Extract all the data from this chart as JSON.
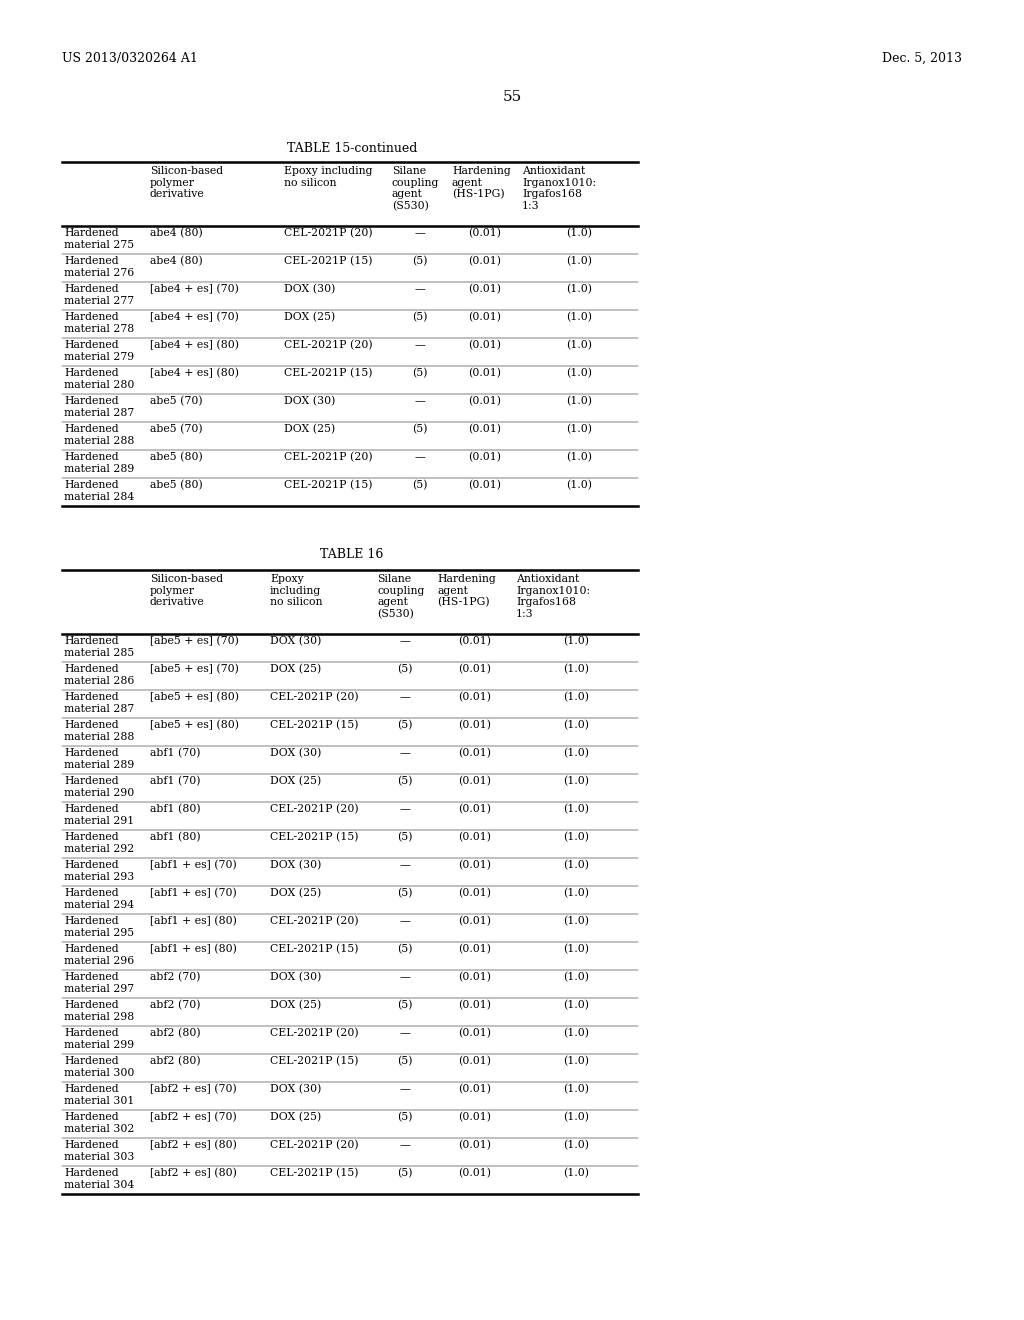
{
  "page_header_left": "US 2013/0320264 A1",
  "page_header_right": "Dec. 5, 2013",
  "page_number": "55",
  "table15_title": "TABLE 15-continued",
  "table15_headers": [
    "",
    "Silicon-based\npolymer\nderivative",
    "Epoxy including\nno silicon",
    "Silane\ncoupling\nagent\n(S530)",
    "Hardening\nagent\n(HS-1PG)",
    "Antioxidant\nIrganox1010:\nIrgafos168\n1:3"
  ],
  "table15_rows": [
    [
      "Hardened\nmaterial 275",
      "abe4 (80)",
      "CEL-2021P (20)",
      "—",
      "(0.01)",
      "(1.0)"
    ],
    [
      "Hardened\nmaterial 276",
      "abe4 (80)",
      "CEL-2021P (15)",
      "(5)",
      "(0.01)",
      "(1.0)"
    ],
    [
      "Hardened\nmaterial 277",
      "[abe4 + es] (70)",
      "DOX (30)",
      "—",
      "(0.01)",
      "(1.0)"
    ],
    [
      "Hardened\nmaterial 278",
      "[abe4 + es] (70)",
      "DOX (25)",
      "(5)",
      "(0.01)",
      "(1.0)"
    ],
    [
      "Hardened\nmaterial 279",
      "[abe4 + es] (80)",
      "CEL-2021P (20)",
      "—",
      "(0.01)",
      "(1.0)"
    ],
    [
      "Hardened\nmaterial 280",
      "[abe4 + es] (80)",
      "CEL-2021P (15)",
      "(5)",
      "(0.01)",
      "(1.0)"
    ],
    [
      "Hardened\nmaterial 287",
      "abe5 (70)",
      "DOX (30)",
      "—",
      "(0.01)",
      "(1.0)"
    ],
    [
      "Hardened\nmaterial 288",
      "abe5 (70)",
      "DOX (25)",
      "(5)",
      "(0.01)",
      "(1.0)"
    ],
    [
      "Hardened\nmaterial 289",
      "abe5 (80)",
      "CEL-2021P (20)",
      "—",
      "(0.01)",
      "(1.0)"
    ],
    [
      "Hardened\nmaterial 284",
      "abe5 (80)",
      "CEL-2021P (15)",
      "(5)",
      "(0.01)",
      "(1.0)"
    ]
  ],
  "table16_title": "TABLE 16",
  "table16_headers": [
    "",
    "Silicon-based\npolymer\nderivative",
    "Epoxy\nincluding\nno silicon",
    "Silane\ncoupling\nagent\n(S530)",
    "Hardening\nagent\n(HS-1PG)",
    "Antioxidant\nIrganox1010:\nIrgafos168\n1:3"
  ],
  "table16_rows": [
    [
      "Hardened\nmaterial 285",
      "[abe5 + es] (70)",
      "DOX (30)",
      "—",
      "(0.01)",
      "(1.0)"
    ],
    [
      "Hardened\nmaterial 286",
      "[abe5 + es] (70)",
      "DOX (25)",
      "(5)",
      "(0.01)",
      "(1.0)"
    ],
    [
      "Hardened\nmaterial 287",
      "[abe5 + es] (80)",
      "CEL-2021P (20)",
      "—",
      "(0.01)",
      "(1.0)"
    ],
    [
      "Hardened\nmaterial 288",
      "[abe5 + es] (80)",
      "CEL-2021P (15)",
      "(5)",
      "(0.01)",
      "(1.0)"
    ],
    [
      "Hardened\nmaterial 289",
      "abf1 (70)",
      "DOX (30)",
      "—",
      "(0.01)",
      "(1.0)"
    ],
    [
      "Hardened\nmaterial 290",
      "abf1 (70)",
      "DOX (25)",
      "(5)",
      "(0.01)",
      "(1.0)"
    ],
    [
      "Hardened\nmaterial 291",
      "abf1 (80)",
      "CEL-2021P (20)",
      "—",
      "(0.01)",
      "(1.0)"
    ],
    [
      "Hardened\nmaterial 292",
      "abf1 (80)",
      "CEL-2021P (15)",
      "(5)",
      "(0.01)",
      "(1.0)"
    ],
    [
      "Hardened\nmaterial 293",
      "[abf1 + es] (70)",
      "DOX (30)",
      "—",
      "(0.01)",
      "(1.0)"
    ],
    [
      "Hardened\nmaterial 294",
      "[abf1 + es] (70)",
      "DOX (25)",
      "(5)",
      "(0.01)",
      "(1.0)"
    ],
    [
      "Hardened\nmaterial 295",
      "[abf1 + es] (80)",
      "CEL-2021P (20)",
      "—",
      "(0.01)",
      "(1.0)"
    ],
    [
      "Hardened\nmaterial 296",
      "[abf1 + es] (80)",
      "CEL-2021P (15)",
      "(5)",
      "(0.01)",
      "(1.0)"
    ],
    [
      "Hardened\nmaterial 297",
      "abf2 (70)",
      "DOX (30)",
      "—",
      "(0.01)",
      "(1.0)"
    ],
    [
      "Hardened\nmaterial 298",
      "abf2 (70)",
      "DOX (25)",
      "(5)",
      "(0.01)",
      "(1.0)"
    ],
    [
      "Hardened\nmaterial 299",
      "abf2 (80)",
      "CEL-2021P (20)",
      "—",
      "(0.01)",
      "(1.0)"
    ],
    [
      "Hardened\nmaterial 300",
      "abf2 (80)",
      "CEL-2021P (15)",
      "(5)",
      "(0.01)",
      "(1.0)"
    ],
    [
      "Hardened\nmaterial 301",
      "[abf2 + es] (70)",
      "DOX (30)",
      "—",
      "(0.01)",
      "(1.0)"
    ],
    [
      "Hardened\nmaterial 302",
      "[abf2 + es] (70)",
      "DOX (25)",
      "(5)",
      "(0.01)",
      "(1.0)"
    ],
    [
      "Hardened\nmaterial 303",
      "[abf2 + es] (80)",
      "CEL-2021P (20)",
      "—",
      "(0.01)",
      "(1.0)"
    ],
    [
      "Hardened\nmaterial 304",
      "[abf2 + es] (80)",
      "CEL-2021P (15)",
      "(5)",
      "(0.01)",
      "(1.0)"
    ]
  ],
  "bg_color": "#ffffff",
  "text_color": "#000000"
}
